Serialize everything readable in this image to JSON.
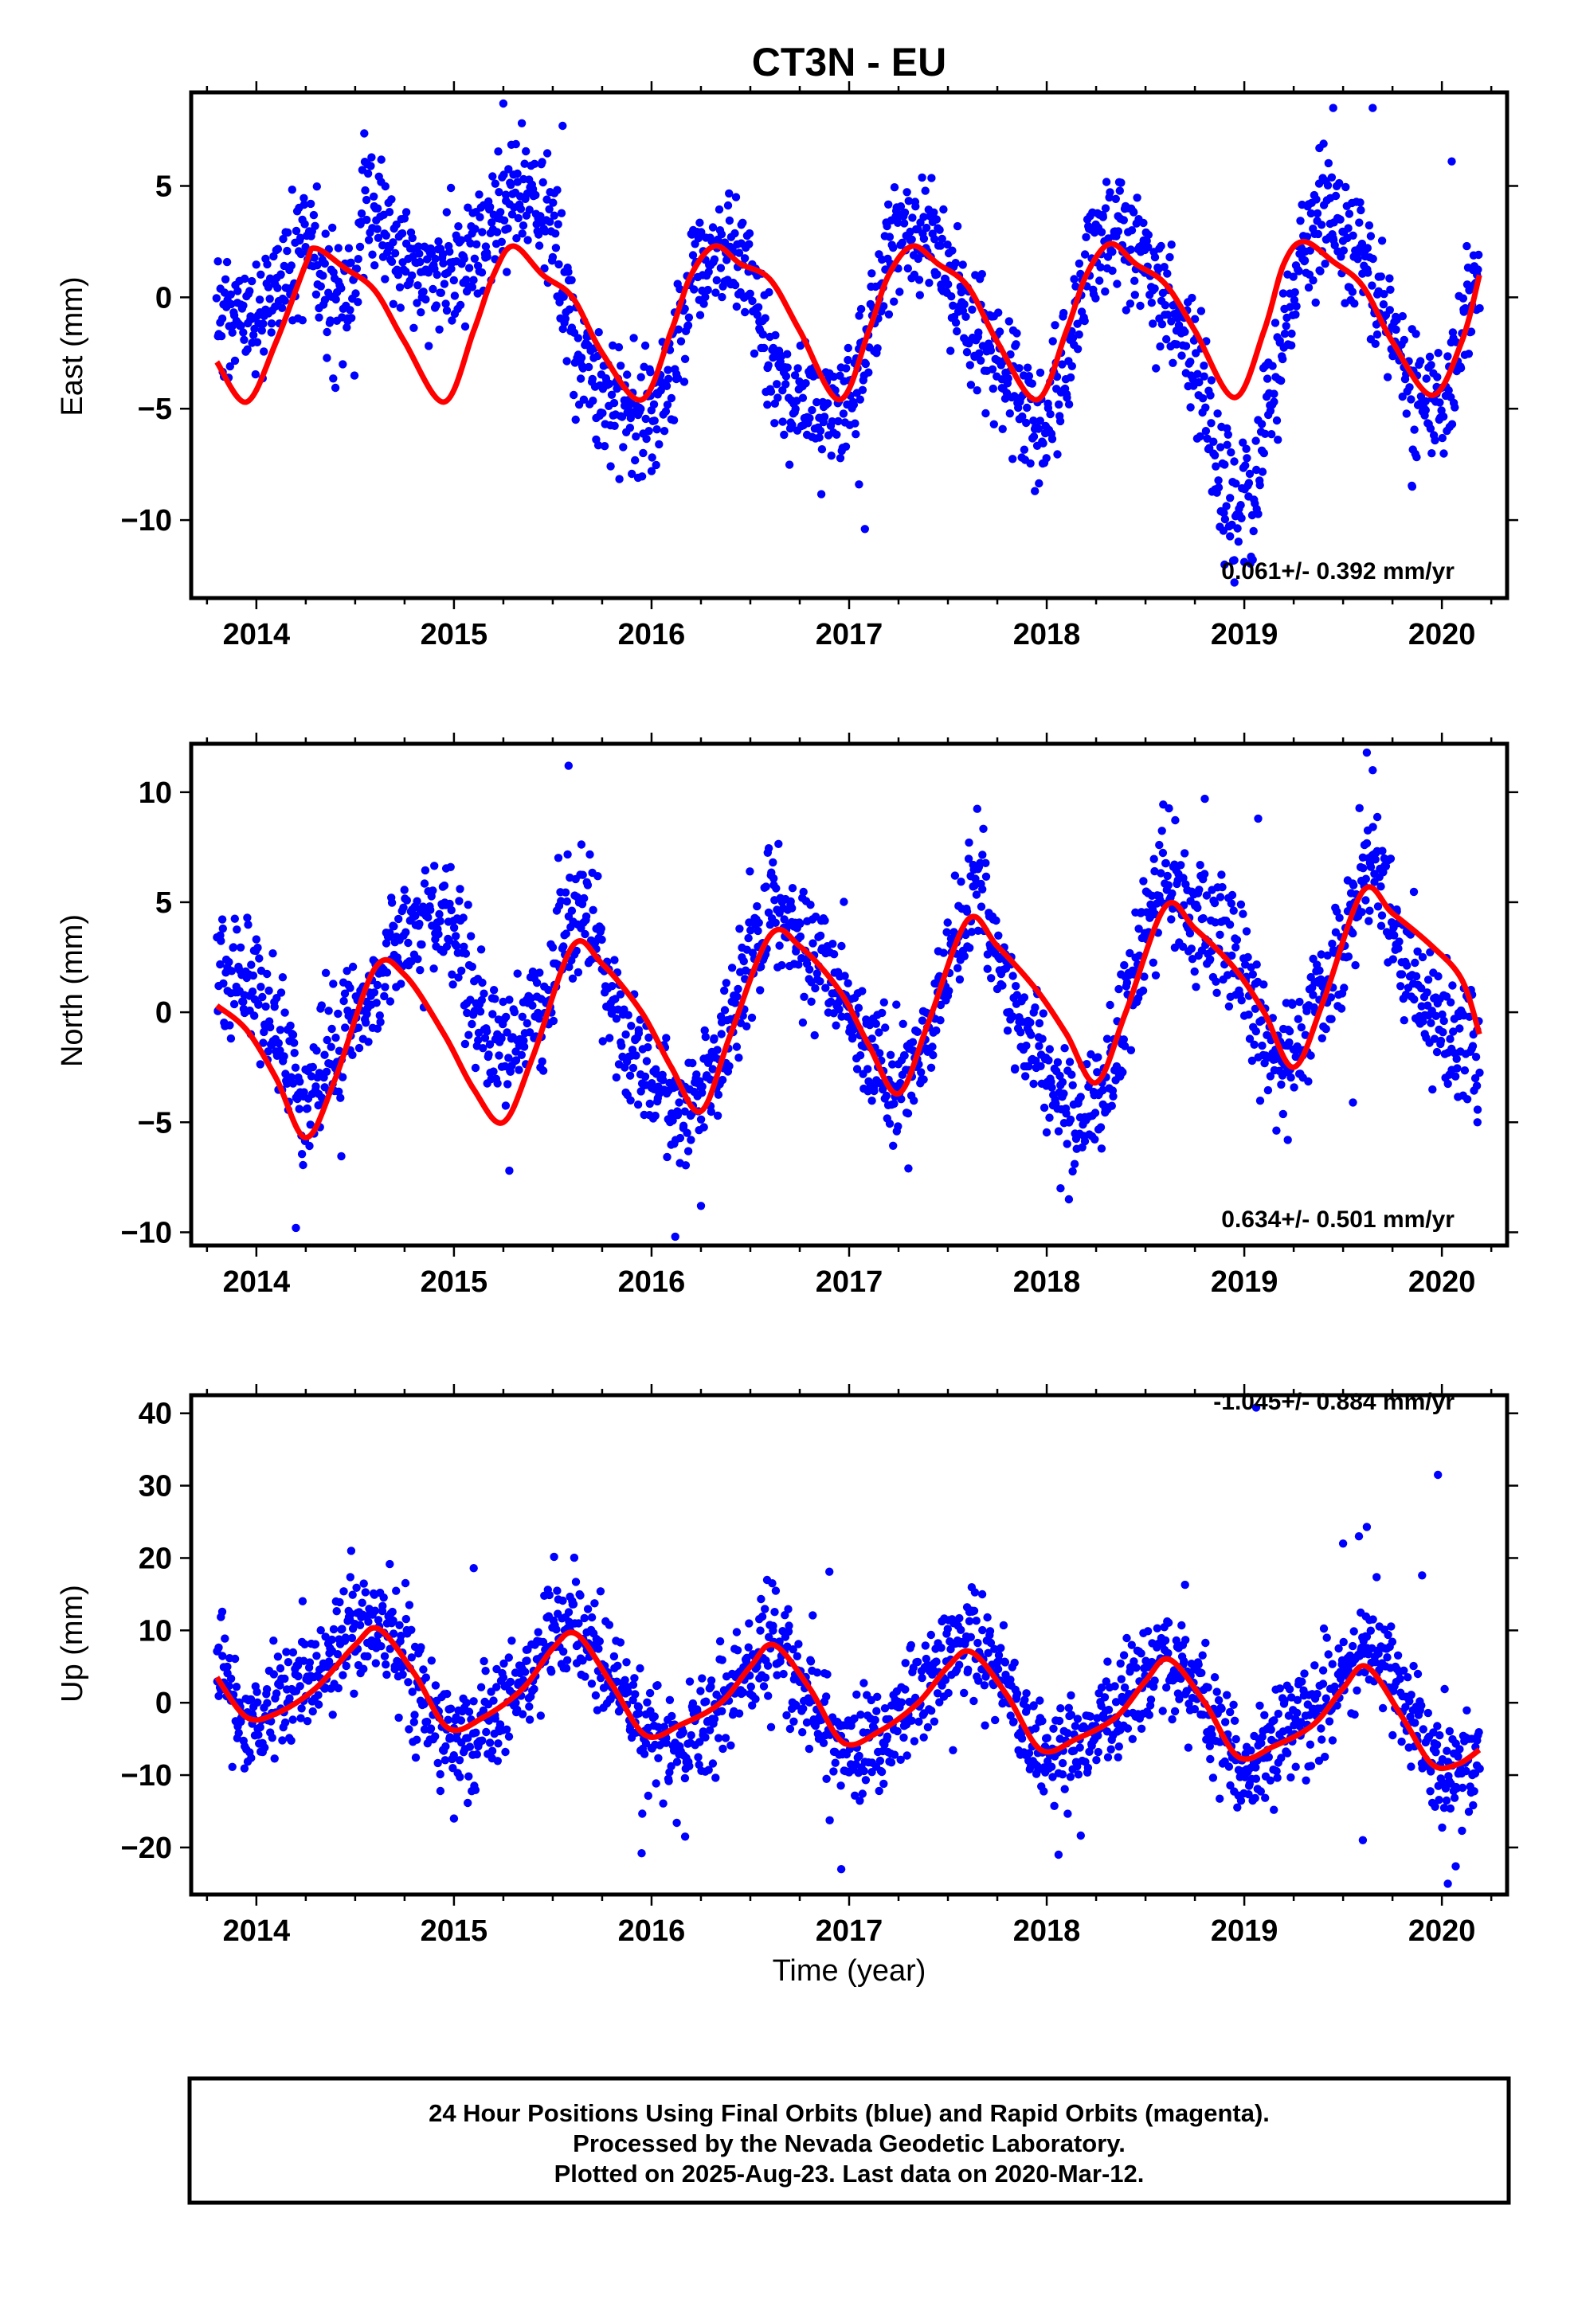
{
  "title": "CT3N - EU",
  "x_axis_label": "Time (year)",
  "footer": {
    "line1": "24 Hour Positions Using Final Orbits (blue) and Rapid Orbits (magenta).",
    "line2": "Processed by the Nevada Geodetic Laboratory.",
    "line3": "Plotted on 2025-Aug-23. Last data on 2020-Mar-12."
  },
  "colors": {
    "points": "#0000ff",
    "fit": "#ff0000",
    "frame": "#000000"
  },
  "chart_data": [
    {
      "type": "scatter",
      "name": "east",
      "ylabel": "East (mm)",
      "rate_text": "0.061+/- 0.392 mm/yr",
      "xlim": [
        2013.67,
        2020.33
      ],
      "ylim": [
        -13.5,
        9.2
      ],
      "x_ticks": [
        2014,
        2015,
        2016,
        2017,
        2018,
        2019,
        2020
      ],
      "y_ticks": [
        5,
        0,
        -5,
        -10
      ],
      "y_tick_labels": [
        "5",
        "0",
        "−5",
        "−10"
      ],
      "fit": {
        "x": [
          2013.8,
          2013.95,
          2014.1,
          2014.25,
          2014.3,
          2014.45,
          2014.6,
          2014.75,
          2014.95,
          2015.1,
          2015.2,
          2015.3,
          2015.45,
          2015.6,
          2015.75,
          2015.95,
          2016.1,
          2016.2,
          2016.32,
          2016.45,
          2016.6,
          2016.75,
          2016.95,
          2017.1,
          2017.2,
          2017.32,
          2017.45,
          2017.6,
          2017.75,
          2017.95,
          2018.1,
          2018.2,
          2018.32,
          2018.45,
          2018.6,
          2018.75,
          2018.95,
          2019.1,
          2019.2,
          2019.3,
          2019.45,
          2019.6,
          2019.75,
          2019.95,
          2020.1,
          2020.19
        ],
        "y": [
          -2.9,
          -4.7,
          -2.0,
          1.5,
          2.2,
          1.3,
          0.3,
          -2.0,
          -4.7,
          -1.5,
          1.0,
          2.3,
          1.0,
          0.0,
          -2.5,
          -4.6,
          -1.5,
          1.0,
          2.3,
          1.5,
          0.8,
          -1.5,
          -4.6,
          -1.5,
          1.0,
          2.3,
          1.5,
          0.5,
          -2.0,
          -4.6,
          -1.5,
          1.0,
          2.4,
          1.5,
          0.6,
          -1.5,
          -4.5,
          -1.5,
          1.5,
          2.5,
          1.6,
          0.5,
          -2.0,
          -4.4,
          -2.0,
          1.0
        ]
      },
      "points": {
        "anchors_x": [
          2013.8,
          2014.0,
          2014.15,
          2014.25,
          2014.35,
          2014.5,
          2014.55,
          2014.7,
          2014.85,
          2015.0,
          2015.1,
          2015.2,
          2015.3,
          2015.4,
          2015.5,
          2015.6,
          2015.7,
          2015.8,
          2015.9,
          2016.0,
          2016.1,
          2016.2,
          2016.3,
          2016.4,
          2016.5,
          2016.6,
          2016.75,
          2016.9,
          2017.0,
          2017.1,
          2017.2,
          2017.3,
          2017.4,
          2017.55,
          2017.7,
          2017.85,
          2018.0,
          2018.1,
          2018.2,
          2018.3,
          2018.45,
          2018.6,
          2018.75,
          2018.85,
          2018.95,
          2019.05,
          2019.2,
          2019.3,
          2019.4,
          2019.55,
          2019.7,
          2019.85,
          2020.0,
          2020.1,
          2020.19
        ],
        "anchors_y": [
          -1.0,
          -1.0,
          1.5,
          2.5,
          0.0,
          0.0,
          5.0,
          2.0,
          1.0,
          1.0,
          2.0,
          3.0,
          5.0,
          4.5,
          3.0,
          -2.0,
          -3.5,
          -5.0,
          -5.0,
          -5.0,
          -3.0,
          0.5,
          2.0,
          2.0,
          1.0,
          -3.0,
          -4.5,
          -5.5,
          -4.5,
          -1.0,
          2.5,
          3.0,
          2.5,
          0.0,
          -2.0,
          -4.5,
          -6.0,
          -3.0,
          1.5,
          3.0,
          2.0,
          0.0,
          -3.0,
          -7.0,
          -10.0,
          -8.5,
          -2.0,
          2.0,
          3.5,
          2.5,
          -1.0,
          -4.0,
          -5.0,
          -1.0,
          1.5
        ],
        "count": 1750,
        "spread_mm": 1.4,
        "outliers": [
          [
            2015.25,
            8.7
          ],
          [
            2015.55,
            7.7
          ],
          [
            2019.45,
            8.5
          ],
          [
            2019.65,
            8.5
          ],
          [
            2019.38,
            6.7
          ],
          [
            2020.05,
            6.1
          ],
          [
            2017.08,
            -10.4
          ],
          [
            2018.95,
            -12.8
          ],
          [
            2018.9,
            -12.0
          ],
          [
            2016.0,
            -7.8
          ],
          [
            2017.05,
            -8.4
          ],
          [
            2017.94,
            -8.7
          ],
          [
            2019.85,
            -8.5
          ]
        ]
      }
    },
    {
      "type": "scatter",
      "name": "north",
      "ylabel": "North (mm)",
      "rate_text": "0.634+/- 0.501 mm/yr",
      "xlim": [
        2013.67,
        2020.33
      ],
      "ylim": [
        -10.6,
        12.2
      ],
      "x_ticks": [
        2014,
        2015,
        2016,
        2017,
        2018,
        2019,
        2020
      ],
      "y_ticks": [
        10,
        5,
        0,
        -5,
        -10
      ],
      "y_tick_labels": [
        "10",
        "5",
        "0",
        "−5",
        "−10"
      ],
      "fit": {
        "x": [
          2013.8,
          2013.95,
          2014.1,
          2014.25,
          2014.4,
          2014.6,
          2014.75,
          2014.95,
          2015.1,
          2015.25,
          2015.4,
          2015.6,
          2015.75,
          2015.95,
          2016.1,
          2016.25,
          2016.4,
          2016.6,
          2016.75,
          2016.95,
          2017.1,
          2017.25,
          2017.4,
          2017.6,
          2017.75,
          2017.95,
          2018.1,
          2018.25,
          2018.4,
          2018.6,
          2018.75,
          2018.95,
          2019.1,
          2019.25,
          2019.4,
          2019.6,
          2019.75,
          2019.95,
          2020.1,
          2020.19
        ],
        "y": [
          0.3,
          -0.8,
          -3.0,
          -5.7,
          -3.0,
          2.0,
          1.7,
          -1.0,
          -3.5,
          -5.0,
          -2.0,
          3.0,
          2.2,
          0.0,
          -2.5,
          -4.5,
          -1.0,
          3.5,
          3.0,
          1.0,
          -1.5,
          -3.7,
          -0.5,
          4.2,
          3.0,
          1.0,
          -1.0,
          -3.2,
          0.0,
          4.8,
          3.8,
          2.0,
          0.0,
          -2.5,
          0.5,
          5.5,
          4.5,
          3.0,
          1.5,
          -1.0
        ]
      },
      "points": {
        "anchors_x": [
          2013.8,
          2014.0,
          2014.15,
          2014.25,
          2014.4,
          2014.55,
          2014.7,
          2014.85,
          2015.0,
          2015.1,
          2015.25,
          2015.45,
          2015.6,
          2015.7,
          2015.85,
          2016.0,
          2016.15,
          2016.3,
          2016.45,
          2016.6,
          2016.75,
          2016.9,
          2017.05,
          2017.2,
          2017.35,
          2017.5,
          2017.65,
          2017.8,
          2017.95,
          2018.15,
          2018.3,
          2018.45,
          2018.6,
          2018.75,
          2018.9,
          2019.05,
          2019.2,
          2019.35,
          2019.5,
          2019.65,
          2019.75,
          2019.9,
          2020.05,
          2020.19
        ],
        "anchors_y": [
          2.0,
          1.5,
          -2.0,
          -4.0,
          -2.0,
          0.5,
          3.0,
          4.5,
          4.0,
          0.0,
          -2.0,
          0.0,
          5.0,
          4.0,
          -1.0,
          -3.0,
          -5.0,
          -3.0,
          1.0,
          5.0,
          3.0,
          2.0,
          -1.0,
          -3.0,
          -2.5,
          2.0,
          6.0,
          1.0,
          -2.0,
          -5.0,
          -4.0,
          2.0,
          7.0,
          4.0,
          3.5,
          0.5,
          -3.0,
          0.0,
          3.0,
          7.0,
          4.0,
          1.0,
          -1.0,
          -2.0
        ],
        "count": 1750,
        "spread_mm": 1.4,
        "outliers": [
          [
            2015.58,
            11.2
          ],
          [
            2019.62,
            11.8
          ],
          [
            2019.65,
            11.0
          ],
          [
            2018.8,
            9.7
          ],
          [
            2019.07,
            8.8
          ],
          [
            2014.2,
            -9.8
          ],
          [
            2016.12,
            -10.2
          ],
          [
            2016.25,
            -8.8
          ],
          [
            2017.3,
            -7.1
          ],
          [
            2015.28,
            -7.2
          ],
          [
            2018.07,
            -8.0
          ],
          [
            2019.22,
            -5.8
          ],
          [
            2019.55,
            -4.1
          ],
          [
            2020.18,
            -5.0
          ]
        ]
      }
    },
    {
      "type": "scatter",
      "name": "up",
      "ylabel": "Up (mm)",
      "rate_text": "-1.045+/- 0.884 mm/yr",
      "xlim": [
        2013.67,
        2020.33
      ],
      "ylim": [
        -26.5,
        42.5
      ],
      "x_ticks": [
        2014,
        2015,
        2016,
        2017,
        2018,
        2019,
        2020
      ],
      "y_ticks": [
        40,
        30,
        20,
        10,
        0,
        -10,
        -20
      ],
      "y_tick_labels": [
        "40",
        "30",
        "20",
        "10",
        "0",
        "−10",
        "−20"
      ],
      "fit": {
        "x": [
          2013.8,
          2013.95,
          2014.1,
          2014.3,
          2014.5,
          2014.62,
          2014.8,
          2014.97,
          2015.15,
          2015.35,
          2015.5,
          2015.62,
          2015.8,
          2015.97,
          2016.15,
          2016.35,
          2016.5,
          2016.62,
          2016.8,
          2016.97,
          2017.15,
          2017.35,
          2017.5,
          2017.62,
          2017.8,
          2017.97,
          2018.15,
          2018.35,
          2018.5,
          2018.62,
          2018.8,
          2018.97,
          2019.15,
          2019.35,
          2019.5,
          2019.62,
          2019.8,
          2019.95,
          2020.08,
          2020.19
        ],
        "y": [
          3.5,
          -2.0,
          -1.5,
          2.0,
          8.0,
          10.2,
          4.0,
          -3.5,
          -2.0,
          2.0,
          7.5,
          9.5,
          2.5,
          -4.5,
          -3.0,
          0.0,
          5.0,
          8.0,
          2.0,
          -5.5,
          -4.0,
          0.0,
          5.0,
          7.0,
          1.0,
          -6.5,
          -5.0,
          -2.0,
          3.0,
          6.0,
          0.0,
          -7.5,
          -6.0,
          -3.0,
          2.0,
          5.0,
          -2.0,
          -8.5,
          -8.5,
          -6.5
        ]
      },
      "points": {
        "anchors_x": [
          2013.8,
          2013.95,
          2014.1,
          2014.3,
          2014.5,
          2014.65,
          2014.8,
          2014.95,
          2015.1,
          2015.3,
          2015.5,
          2015.62,
          2015.8,
          2015.97,
          2016.15,
          2016.35,
          2016.5,
          2016.62,
          2016.8,
          2016.97,
          2017.15,
          2017.35,
          2017.5,
          2017.62,
          2017.8,
          2017.97,
          2018.15,
          2018.35,
          2018.5,
          2018.62,
          2018.8,
          2018.97,
          2019.15,
          2019.35,
          2019.5,
          2019.62,
          2019.8,
          2019.95,
          2020.08,
          2020.19
        ],
        "anchors_y": [
          5.0,
          -2.0,
          0.0,
          4.0,
          10.0,
          10.0,
          4.0,
          -4.0,
          -5.0,
          2.0,
          8.0,
          10.0,
          3.0,
          -5.0,
          -6.0,
          -1.0,
          5.0,
          8.0,
          2.0,
          -7.0,
          -5.0,
          0.0,
          6.0,
          9.0,
          2.0,
          -7.0,
          -6.0,
          -2.0,
          4.0,
          7.0,
          1.0,
          -8.0,
          -6.0,
          -1.0,
          4.0,
          8.0,
          2.0,
          -8.0,
          -10.0,
          -7.0
        ],
        "count": 1750,
        "spread_mm": 3.8,
        "outliers": [
          [
            2019.62,
            24.3
          ],
          [
            2019.58,
            23.0
          ],
          [
            2019.5,
            22.0
          ],
          [
            2019.9,
            17.6
          ],
          [
            2019.98,
            31.5
          ],
          [
            2019.06,
            40.8
          ],
          [
            2014.48,
            21.0
          ],
          [
            2015.1,
            18.6
          ],
          [
            2018.7,
            16.3
          ],
          [
            2016.9,
            18.1
          ],
          [
            2020.03,
            -25.0
          ],
          [
            2016.96,
            -23.0
          ],
          [
            2015.95,
            -20.8
          ],
          [
            2018.06,
            -21.0
          ],
          [
            2019.6,
            -19.0
          ],
          [
            2020.07,
            -22.6
          ],
          [
            2016.17,
            -18.5
          ],
          [
            2015.0,
            -16.0
          ]
        ]
      }
    }
  ]
}
